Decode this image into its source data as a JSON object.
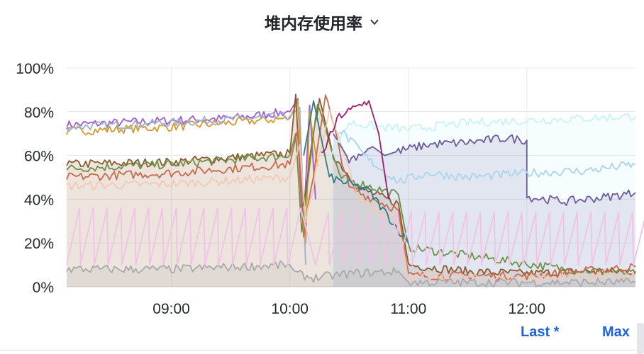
{
  "panel": {
    "title": "堆内存使用率"
  },
  "legend": {
    "last_label": "Last *",
    "max_label": "Max"
  },
  "colors": {
    "grid": "#e8e8ec",
    "axis_text": "#24292e",
    "legend_link": "#1f62e0"
  },
  "chart_data": {
    "type": "line",
    "title": "堆内存使用率",
    "x_ticks": [
      "09:00",
      "10:00",
      "11:00",
      "12:00"
    ],
    "y_ticks": [
      "0%",
      "20%",
      "40%",
      "60%",
      "80%",
      "100%"
    ],
    "x_range": [
      "08:07",
      "12:55"
    ],
    "ylim": [
      0,
      100
    ],
    "y_unit": "%",
    "grid": true,
    "series": [
      {
        "color": "#a25bd6",
        "fill": false,
        "points": [
          [
            "08:07",
            74
          ],
          [
            "09:00",
            76
          ],
          [
            "09:30",
            77
          ],
          [
            "10:00",
            80
          ],
          [
            "10:04",
            86
          ],
          [
            "10:07",
            30
          ],
          [
            "10:10",
            83
          ],
          [
            "10:13",
            40
          ]
        ]
      },
      {
        "color": "#d49a2a",
        "fill": false,
        "points": [
          [
            "08:07",
            71
          ],
          [
            "09:00",
            73
          ],
          [
            "09:30",
            75
          ],
          [
            "10:00",
            77
          ],
          [
            "10:04",
            85
          ],
          [
            "10:08",
            20
          ],
          [
            "10:10",
            80
          ],
          [
            "10:14",
            55
          ]
        ]
      },
      {
        "color": "#9fb0cc",
        "fill": false,
        "points": [
          [
            "08:07",
            73
          ],
          [
            "09:00",
            75
          ],
          [
            "10:00",
            78
          ],
          [
            "10:05",
            82
          ],
          [
            "10:08",
            10
          ]
        ]
      },
      {
        "color": "#8a5a2e",
        "fill": true,
        "points": [
          [
            "08:07",
            56
          ],
          [
            "09:00",
            57
          ],
          [
            "09:30",
            59
          ],
          [
            "10:00",
            61
          ],
          [
            "10:03",
            88
          ],
          [
            "10:06",
            34
          ],
          [
            "10:15",
            86
          ],
          [
            "10:22",
            60
          ],
          [
            "10:35",
            45
          ],
          [
            "10:55",
            38
          ],
          [
            "11:00",
            10
          ],
          [
            "11:30",
            7
          ],
          [
            "12:00",
            6
          ],
          [
            "12:30",
            7
          ],
          [
            "12:55",
            7
          ]
        ]
      },
      {
        "color": "#6f8f47",
        "fill": false,
        "points": [
          [
            "08:07",
            54
          ],
          [
            "09:00",
            56
          ],
          [
            "10:00",
            60
          ],
          [
            "10:03",
            70
          ],
          [
            "10:06",
            25
          ],
          [
            "10:14",
            85
          ],
          [
            "10:25",
            50
          ],
          [
            "10:55",
            42
          ],
          [
            "11:00",
            18
          ],
          [
            "12:20",
            8
          ],
          [
            "12:55",
            6
          ]
        ]
      },
      {
        "color": "#c86b4d",
        "fill": false,
        "points": [
          [
            "08:07",
            50
          ],
          [
            "09:00",
            52
          ],
          [
            "10:00",
            56
          ],
          [
            "10:04",
            72
          ],
          [
            "10:07",
            22
          ],
          [
            "10:18",
            88
          ],
          [
            "10:30",
            45
          ],
          [
            "10:55",
            35
          ],
          [
            "11:00",
            5
          ],
          [
            "12:00",
            5
          ],
          [
            "12:55",
            9
          ]
        ]
      },
      {
        "color": "#f3c9b3",
        "fill": false,
        "points": [
          [
            "08:07",
            46
          ],
          [
            "09:00",
            47
          ],
          [
            "10:00",
            50
          ],
          [
            "10:05",
            65
          ],
          [
            "10:08",
            30
          ],
          [
            "10:20",
            80
          ],
          [
            "10:35",
            40
          ],
          [
            "10:55",
            30
          ],
          [
            "11:00",
            4
          ],
          [
            "12:00",
            4
          ],
          [
            "12:55",
            5
          ]
        ]
      },
      {
        "color": "#2f7a84",
        "fill": false,
        "points": [
          [
            "10:07",
            60
          ],
          [
            "10:12",
            85
          ],
          [
            "10:20",
            50
          ],
          [
            "10:40",
            44
          ],
          [
            "11:00",
            20
          ]
        ]
      },
      {
        "color": "#6c5a9a",
        "fill": true,
        "points": [
          [
            "10:22",
            70
          ],
          [
            "10:30",
            58
          ],
          [
            "10:42",
            64
          ],
          [
            "10:48",
            60
          ],
          [
            "10:55",
            62
          ],
          [
            "11:10",
            65
          ],
          [
            "11:30",
            66
          ],
          [
            "11:50",
            68
          ],
          [
            "12:00",
            67
          ],
          [
            "12:00",
            41
          ],
          [
            "12:20",
            39
          ],
          [
            "12:40",
            41
          ],
          [
            "12:55",
            43
          ]
        ]
      },
      {
        "color": "#c7f2f8",
        "fill": true,
        "points": [
          [
            "10:20",
            60
          ],
          [
            "10:30",
            75
          ],
          [
            "10:45",
            73
          ],
          [
            "11:00",
            72
          ],
          [
            "11:30",
            75
          ],
          [
            "12:00",
            76
          ],
          [
            "12:30",
            77
          ],
          [
            "12:55",
            78
          ]
        ]
      },
      {
        "color": "#a9d4ee",
        "fill": false,
        "points": [
          [
            "10:25",
            72
          ],
          [
            "10:40",
            58
          ],
          [
            "10:55",
            48
          ],
          [
            "11:10",
            52
          ],
          [
            "11:30",
            50
          ],
          [
            "12:00",
            52
          ],
          [
            "12:30",
            53
          ],
          [
            "12:55",
            56
          ]
        ]
      },
      {
        "color": "#9c1e6b",
        "fill": false,
        "points": [
          [
            "10:16",
            60
          ],
          [
            "10:25",
            78
          ],
          [
            "10:40",
            85
          ],
          [
            "10:45",
            70
          ],
          [
            "10:50",
            40
          ]
        ]
      },
      {
        "color": "#a9a9ab",
        "fill": true,
        "points": [
          [
            "08:07",
            8
          ],
          [
            "09:00",
            8
          ],
          [
            "09:30",
            9
          ],
          [
            "10:00",
            10
          ],
          [
            "10:03",
            6
          ],
          [
            "10:12",
            4
          ],
          [
            "10:30",
            6
          ],
          [
            "10:55",
            7
          ],
          [
            "11:00",
            2
          ],
          [
            "12:55",
            2
          ]
        ]
      },
      {
        "color": "#f0c3e6",
        "fill": false,
        "sawtooth": true,
        "points": [
          [
            "08:07",
            10
          ],
          [
            "09:00",
            30
          ],
          [
            "10:00",
            30
          ],
          [
            "10:10",
            10
          ],
          [
            "11:00",
            30
          ],
          [
            "12:55",
            28
          ]
        ]
      }
    ]
  }
}
